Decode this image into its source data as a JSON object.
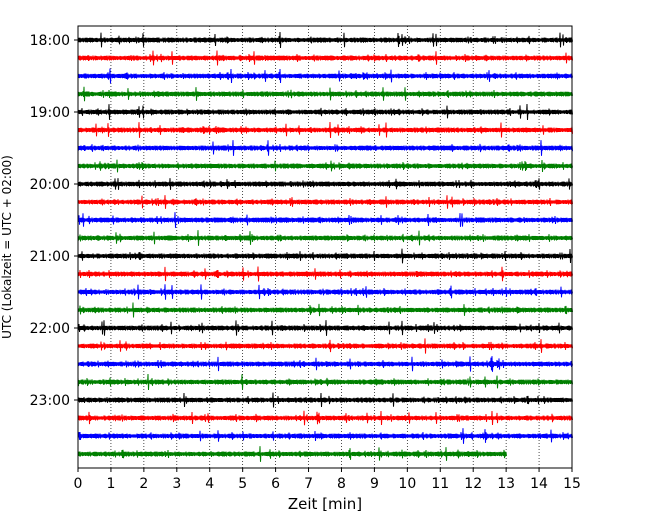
{
  "chart_data": {
    "type": "line",
    "title": "",
    "xlabel": "Zeit  [min]",
    "ylabel": "UTC (Lokalzeit = UTC + 02:00)",
    "xlim": [
      0,
      15
    ],
    "x_ticks": [
      0,
      1,
      2,
      3,
      4,
      5,
      6,
      7,
      8,
      9,
      10,
      11,
      12,
      13,
      14,
      15
    ],
    "y_tick_labels": [
      "18:00",
      "19:00",
      "20:00",
      "21:00",
      "22:00",
      "23:00"
    ],
    "vertical_grid": "dotted",
    "legend": "none",
    "color_cycle": [
      "#000000",
      "#ff0000",
      "#0000ff",
      "#008000"
    ],
    "rows": [
      {
        "start": "18:00",
        "color": "#000000",
        "end_min": 15
      },
      {
        "start": "18:15",
        "color": "#ff0000",
        "end_min": 15
      },
      {
        "start": "18:30",
        "color": "#0000ff",
        "end_min": 15
      },
      {
        "start": "18:45",
        "color": "#008000",
        "end_min": 15
      },
      {
        "start": "19:00",
        "color": "#000000",
        "end_min": 15
      },
      {
        "start": "19:15",
        "color": "#ff0000",
        "end_min": 15
      },
      {
        "start": "19:30",
        "color": "#0000ff",
        "end_min": 15
      },
      {
        "start": "19:45",
        "color": "#008000",
        "end_min": 15
      },
      {
        "start": "20:00",
        "color": "#000000",
        "end_min": 15
      },
      {
        "start": "20:15",
        "color": "#ff0000",
        "end_min": 15
      },
      {
        "start": "20:30",
        "color": "#0000ff",
        "end_min": 15
      },
      {
        "start": "20:45",
        "color": "#008000",
        "end_min": 15
      },
      {
        "start": "21:00",
        "color": "#000000",
        "end_min": 15
      },
      {
        "start": "21:15",
        "color": "#ff0000",
        "end_min": 15
      },
      {
        "start": "21:30",
        "color": "#0000ff",
        "end_min": 15
      },
      {
        "start": "21:45",
        "color": "#008000",
        "end_min": 15
      },
      {
        "start": "22:00",
        "color": "#000000",
        "end_min": 15
      },
      {
        "start": "22:15",
        "color": "#ff0000",
        "end_min": 15
      },
      {
        "start": "22:30",
        "color": "#0000ff",
        "end_min": 15
      },
      {
        "start": "22:45",
        "color": "#008000",
        "end_min": 15
      },
      {
        "start": "23:00",
        "color": "#000000",
        "end_min": 15
      },
      {
        "start": "23:15",
        "color": "#ff0000",
        "end_min": 15
      },
      {
        "start": "23:30",
        "color": "#0000ff",
        "end_min": 15
      },
      {
        "start": "23:45",
        "color": "#008000",
        "end_min": 13
      }
    ]
  }
}
